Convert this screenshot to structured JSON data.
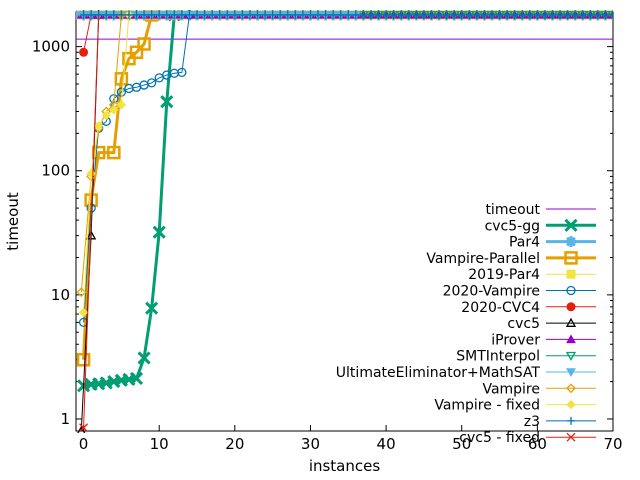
{
  "chart_data": {
    "type": "line",
    "title": "",
    "xlabel": "instances",
    "ylabel": "timeout",
    "x_scale": "linear",
    "y_scale": "log",
    "xlim": [
      -1,
      70
    ],
    "ylim": [
      0.8,
      1900
    ],
    "grid": false,
    "legend_placement": "bottom-right",
    "x_ticks": [
      0,
      10,
      20,
      30,
      40,
      50,
      60,
      70
    ],
    "y_ticks": [
      1,
      10,
      100,
      1000
    ],
    "timeout_value": 1150,
    "series": [
      {
        "name": "timeout",
        "color": "#9400d3",
        "marker": "none",
        "line_width": 1,
        "points": [
          [
            -1,
            1150
          ],
          [
            70,
            1150
          ]
        ]
      },
      {
        "name": "cvc5-gg",
        "color": "#009e73",
        "marker": "x",
        "line_width": 3,
        "points": [
          [
            0,
            1.85
          ],
          [
            1,
            1.9
          ],
          [
            2,
            1.92
          ],
          [
            3,
            1.95
          ],
          [
            4,
            2.0
          ],
          [
            5,
            2.05
          ],
          [
            6,
            2.08
          ],
          [
            7,
            2.12
          ],
          [
            8,
            3.1
          ],
          [
            9,
            7.8
          ],
          [
            10,
            32
          ],
          [
            11,
            360
          ],
          [
            12,
            1800
          ]
        ]
      },
      {
        "name": "Par4",
        "color": "#56b4e9",
        "marker": "star",
        "line_width": 3,
        "points": [
          [
            0,
            1800
          ],
          [
            70,
            1800
          ]
        ]
      },
      {
        "name": "Vampire-Parallel",
        "color": "#e69f00",
        "marker": "square",
        "line_width": 3,
        "points": [
          [
            0,
            3.0
          ],
          [
            1,
            58
          ],
          [
            2,
            140
          ],
          [
            4,
            140
          ],
          [
            5,
            550
          ],
          [
            6,
            800
          ],
          [
            7,
            900
          ],
          [
            8,
            1050
          ],
          [
            9,
            1800
          ]
        ]
      },
      {
        "name": "2019-Par4",
        "color": "#f0e442",
        "marker": "filled-square",
        "line_width": 1,
        "points": [
          [
            -1,
            1800
          ],
          [
            70,
            1800
          ]
        ]
      },
      {
        "name": "2020-Vampire",
        "color": "#0072b2",
        "marker": "circle",
        "line_width": 1,
        "points": [
          [
            0,
            6
          ],
          [
            1,
            50
          ],
          [
            2,
            220
          ],
          [
            3,
            250
          ],
          [
            4,
            380
          ],
          [
            5,
            430
          ],
          [
            6,
            460
          ],
          [
            7,
            470
          ],
          [
            8,
            490
          ],
          [
            9,
            510
          ],
          [
            10,
            560
          ],
          [
            11,
            590
          ],
          [
            12,
            610
          ],
          [
            13,
            620
          ],
          [
            14,
            1800
          ]
        ]
      },
      {
        "name": "2020-CVC4",
        "color": "#e51e10",
        "marker": "filled-circle",
        "line_width": 1,
        "points": [
          [
            0,
            900
          ],
          [
            1,
            1800
          ]
        ]
      },
      {
        "name": "cvc5",
        "color": "#000000",
        "marker": "triangle",
        "line_width": 1,
        "points": [
          [
            -0.3,
            0.8
          ],
          [
            1,
            30
          ],
          [
            2,
            1800
          ]
        ]
      },
      {
        "name": "iProver",
        "color": "#9400d3",
        "marker": "filled-triangle",
        "line_width": 1,
        "points": [
          [
            -1,
            1800
          ],
          [
            70,
            1800
          ]
        ]
      },
      {
        "name": "SMTInterpol",
        "color": "#009e73",
        "marker": "inverted-triangle",
        "line_width": 1,
        "points": [
          [
            0,
            1800
          ],
          [
            70,
            1800
          ]
        ]
      },
      {
        "name": "UltimateEliminator+MathSAT",
        "color": "#56b4e9",
        "marker": "filled-inverted-triangle",
        "line_width": 1,
        "points": [
          [
            -1,
            1800
          ],
          [
            36,
            1800
          ]
        ]
      },
      {
        "name": "Vampire",
        "color": "#e69f00",
        "marker": "diamond",
        "line_width": 1,
        "points": [
          [
            -0.3,
            10.5
          ],
          [
            1,
            90
          ],
          [
            2,
            220
          ],
          [
            3,
            300
          ],
          [
            4,
            340
          ],
          [
            5,
            1800
          ]
        ]
      },
      {
        "name": "Vampire - fixed",
        "color": "#f0e442",
        "marker": "filled-diamond",
        "line_width": 1,
        "points": [
          [
            0,
            7.2
          ],
          [
            1,
            95
          ],
          [
            2,
            230
          ],
          [
            3,
            280
          ],
          [
            4,
            310
          ],
          [
            5,
            340
          ],
          [
            6,
            1800
          ]
        ]
      },
      {
        "name": "z3",
        "color": "#0072b2",
        "marker": "plus",
        "line_width": 1,
        "points": [
          [
            0,
            1800
          ],
          [
            70,
            1800
          ]
        ]
      },
      {
        "name": "cvc5 - fixed",
        "color": "#e51e10",
        "marker": "x",
        "line_width": 1,
        "points": [
          [
            0,
            0.85
          ],
          [
            2,
            1800
          ]
        ]
      }
    ]
  }
}
